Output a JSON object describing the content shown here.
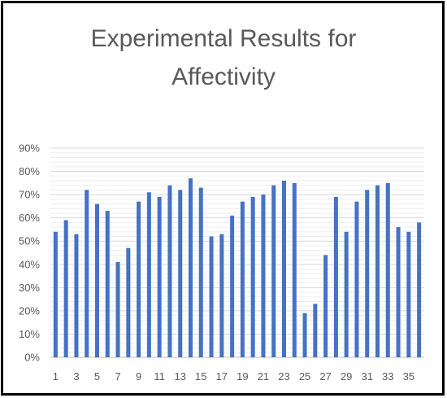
{
  "chart_data": {
    "type": "bar",
    "title": [
      "Experimental Results for",
      "Affectivity"
    ],
    "xlabel": "",
    "ylabel": "",
    "ylim": [
      0,
      90
    ],
    "y_ticks": [
      "0%",
      "10%",
      "20%",
      "30%",
      "40%",
      "50%",
      "60%",
      "70%",
      "80%",
      "90%"
    ],
    "x_tick_labels": [
      "1",
      "3",
      "5",
      "7",
      "9",
      "11",
      "13",
      "15",
      "17",
      "19",
      "21",
      "23",
      "25",
      "27",
      "29",
      "31",
      "33",
      "35"
    ],
    "categories": [
      1,
      2,
      3,
      4,
      5,
      6,
      7,
      8,
      9,
      10,
      11,
      12,
      13,
      14,
      15,
      16,
      17,
      18,
      19,
      20,
      21,
      22,
      23,
      24,
      25,
      26,
      27,
      28,
      29,
      30,
      31,
      32,
      33,
      34,
      35,
      36
    ],
    "values": [
      54,
      59,
      53,
      72,
      66,
      63,
      41,
      47,
      67,
      71,
      69,
      74,
      72,
      77,
      73,
      52,
      53,
      61,
      67,
      69,
      70,
      74,
      76,
      75,
      19,
      23,
      44,
      69,
      54,
      67,
      72,
      74,
      75,
      56,
      54,
      58
    ],
    "grid": true,
    "legend": "none",
    "bar_color": "#4472C4"
  }
}
